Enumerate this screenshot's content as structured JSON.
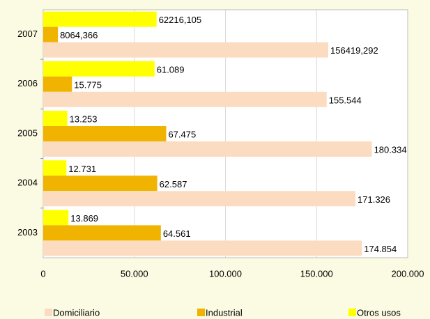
{
  "chart_data": {
    "type": "hbar",
    "categories": [
      "2007",
      "2006",
      "2005",
      "2004",
      "2003"
    ],
    "series": [
      {
        "name": "Otros usos",
        "color": "#ffff00",
        "values": [
          62216.105,
          61089,
          13253,
          12731,
          13869
        ],
        "value_labels": [
          "62216,105",
          "61.089",
          "13.253",
          "12.731",
          "13.869"
        ]
      },
      {
        "name": "Industrial",
        "color": "#f0b400",
        "values": [
          8064.366,
          15775,
          67475,
          62587,
          64561
        ],
        "value_labels": [
          "8064,366",
          "15.775",
          "67.475",
          "62.587",
          "64.561"
        ]
      },
      {
        "name": "Domiciliario",
        "color": "#fcdcc0",
        "values": [
          156419.292,
          155544,
          180334,
          171326,
          174854
        ],
        "value_labels": [
          "156419,292",
          "155.544",
          "180.334",
          "171.326",
          "174.854"
        ]
      }
    ],
    "legend_order": [
      "Domiciliario",
      "Industrial",
      "Otros usos"
    ],
    "xlim": [
      0,
      200000
    ],
    "xticks": [
      0,
      {
        "value": 50000,
        "label": "50.000"
      },
      {
        "value": 100000,
        "label": "100.000"
      },
      {
        "value": 150000,
        "label": "150.000"
      },
      {
        "value": 200000,
        "label": "200.000"
      }
    ],
    "grid": true
  }
}
